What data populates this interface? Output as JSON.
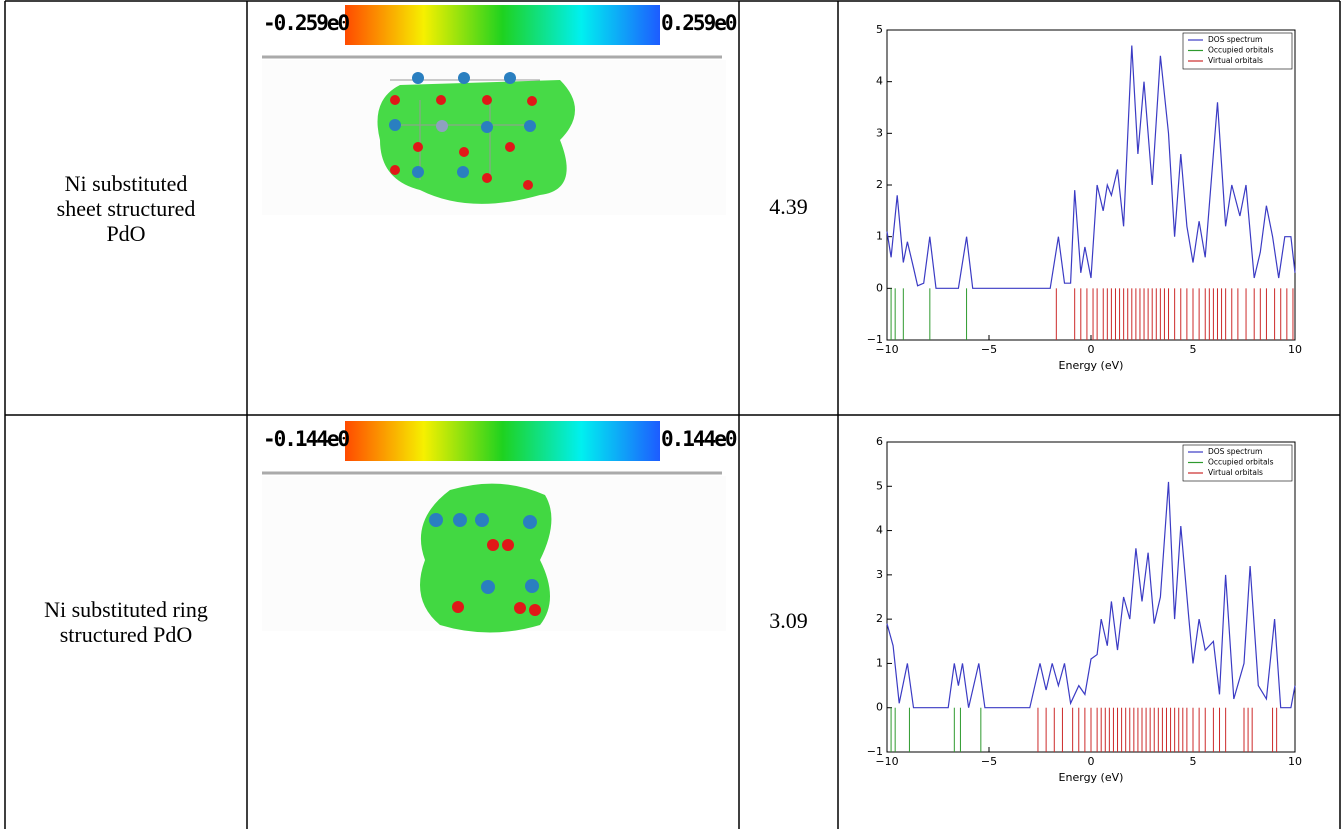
{
  "table": {
    "rows": [
      {
        "label": "Ni substituted sheet structured PdO",
        "colorbar": {
          "min": "-0.259e0",
          "max": "0.259e0"
        },
        "value": 4.39,
        "chart": {
          "type": "line",
          "xlabel": "Energy (eV)",
          "legend": "upper right",
          "xlim": [
            -10,
            10
          ],
          "ylim": [
            -1,
            5
          ],
          "xticks": [
            {
              "value": -10,
              "label": "−10"
            },
            {
              "value": -5,
              "label": "−5"
            },
            0,
            5,
            10
          ],
          "yticks": [
            {
              "value": -1,
              "label": "−1"
            },
            0,
            1,
            2,
            3,
            4,
            5
          ],
          "series": [
            {
              "name": "DOS spectrum",
              "color": "#3b3bc4",
              "x": [
                -10,
                -9.8,
                -9.5,
                -9.2,
                -9,
                -8.7,
                -8.5,
                -8.2,
                -7.9,
                -7.6,
                -6.5,
                -6.1,
                -5.8,
                -2,
                -1.6,
                -1.3,
                -1,
                -0.8,
                -0.5,
                -0.3,
                0,
                0.3,
                0.6,
                0.8,
                1,
                1.3,
                1.6,
                2,
                2.3,
                2.6,
                3,
                3.4,
                3.8,
                4.1,
                4.4,
                4.7,
                5,
                5.3,
                5.6,
                6.2,
                6.6,
                6.9,
                7.3,
                7.6,
                8,
                8.3,
                8.6,
                8.9,
                9.2,
                9.5,
                9.8,
                10
              ],
              "values": [
                1.1,
                0.6,
                1.8,
                0.5,
                0.9,
                0.4,
                0.05,
                0.1,
                1,
                0,
                0,
                1,
                0,
                0,
                1,
                0.1,
                0.1,
                1.9,
                0.3,
                0.8,
                0.2,
                2,
                1.5,
                2,
                1.8,
                2.3,
                1.2,
                4.7,
                2.6,
                4,
                2,
                4.5,
                3,
                1,
                2.6,
                1.2,
                0.5,
                1.3,
                0.6,
                3.6,
                1.2,
                2,
                1.4,
                2,
                0.2,
                0.7,
                1.6,
                1,
                0.2,
                1,
                1,
                0.3
              ]
            },
            {
              "name": "Occupied orbitals",
              "color": "#2e9a2e",
              "x": [
                -9.8,
                -9.6,
                -9.2,
                -7.9,
                -6.1
              ]
            },
            {
              "name": "Virtual orbitals",
              "color": "#cc2a2a",
              "x": [
                -1.7,
                -0.8,
                -0.5,
                -0.2,
                0.1,
                0.3,
                0.6,
                0.8,
                1,
                1.2,
                1.4,
                1.6,
                1.8,
                2,
                2.2,
                2.4,
                2.6,
                2.8,
                3,
                3.2,
                3.4,
                3.6,
                3.8,
                4.1,
                4.4,
                4.7,
                5,
                5.3,
                5.6,
                5.8,
                6,
                6.2,
                6.4,
                6.6,
                6.9,
                7.2,
                7.6,
                8,
                8.3,
                8.6,
                9,
                9.3,
                9.6,
                9.9
              ]
            }
          ]
        }
      },
      {
        "label": "Ni substituted ring structured PdO",
        "colorbar": {
          "min": "-0.144e0",
          "max": "0.144e0"
        },
        "value": 3.09,
        "chart": {
          "type": "line",
          "xlabel": "Energy (eV)",
          "legend": "upper right",
          "xlim": [
            -10,
            10
          ],
          "ylim": [
            -1,
            6
          ],
          "xticks": [
            {
              "value": -10,
              "label": "−10"
            },
            {
              "value": -5,
              "label": "−5"
            },
            0,
            5,
            10
          ],
          "yticks": [
            {
              "value": -1,
              "label": "−1"
            },
            0,
            1,
            2,
            3,
            4,
            5,
            6
          ],
          "series": [
            {
              "name": "DOS spectrum",
              "color": "#3b3bc4",
              "x": [
                -10,
                -9.7,
                -9.4,
                -9,
                -8.7,
                -7,
                -6.7,
                -6.5,
                -6.3,
                -6,
                -5.5,
                -5.2,
                -3,
                -2.5,
                -2.2,
                -1.9,
                -1.6,
                -1.3,
                -1,
                -0.6,
                -0.3,
                0,
                0.3,
                0.5,
                0.8,
                1,
                1.3,
                1.6,
                1.9,
                2.2,
                2.5,
                2.8,
                3.1,
                3.4,
                3.8,
                4.1,
                4.4,
                4.8,
                5,
                5.3,
                5.6,
                6,
                6.3,
                6.6,
                7,
                7.5,
                7.8,
                8.2,
                8.6,
                9,
                9.3,
                9.8,
                10
              ],
              "values": [
                1.9,
                1.4,
                0.1,
                1,
                0,
                0,
                1,
                0.5,
                1,
                0,
                1,
                0,
                0,
                1,
                0.4,
                1,
                0.5,
                1,
                0.1,
                0.5,
                0.3,
                1.1,
                1.2,
                2,
                1.4,
                2.4,
                1.3,
                2.5,
                2,
                3.6,
                2.4,
                3.5,
                1.9,
                2.5,
                5.1,
                2,
                4.1,
                2,
                1,
                2,
                1.3,
                1.5,
                0.3,
                3,
                0.2,
                1,
                3.2,
                0.5,
                0.2,
                2,
                0,
                0,
                0.5
              ]
            },
            {
              "name": "Occupied orbitals",
              "color": "#2e9a2e",
              "x": [
                -9.8,
                -9.6,
                -8.9,
                -6.7,
                -6.4,
                -5.4
              ]
            },
            {
              "name": "Virtual orbitals",
              "color": "#cc2a2a",
              "x": [
                -2.6,
                -2.2,
                -1.8,
                -1.4,
                -0.9,
                -0.6,
                -0.3,
                0,
                0.3,
                0.5,
                0.7,
                0.9,
                1.1,
                1.3,
                1.5,
                1.7,
                1.9,
                2.1,
                2.3,
                2.5,
                2.7,
                2.9,
                3.1,
                3.3,
                3.5,
                3.7,
                3.9,
                4.1,
                4.3,
                4.5,
                4.7,
                5,
                5.3,
                5.6,
                6,
                6.3,
                6.6,
                7.5,
                7.7,
                7.9,
                8.9,
                9.1
              ]
            }
          ]
        }
      }
    ]
  }
}
